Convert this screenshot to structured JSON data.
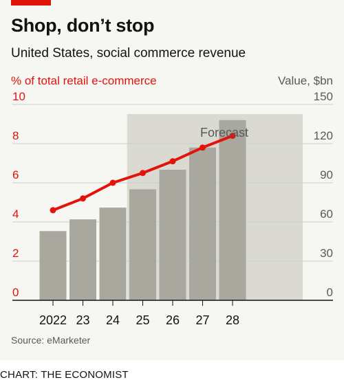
{
  "header": {
    "title": "Shop, don’t stop",
    "subtitle": "United States, social commerce revenue"
  },
  "footer": {
    "source": "Source: eMarketer",
    "credit": "CHART: THE ECONOMIST"
  },
  "colors": {
    "accent": "#e3120b",
    "bar": "#a8a89e",
    "forecast_band": "#dadad3",
    "background": "#f6f6f2"
  },
  "chart_data": {
    "type": "bar",
    "categories": [
      "2022",
      "23",
      "24",
      "25",
      "26",
      "27",
      "28"
    ],
    "forecast_label": "Forecast",
    "forecast_start": "25",
    "series": [
      {
        "type": "bar",
        "axis": "right",
        "values": [
          53,
          62,
          71,
          85,
          100,
          117,
          138
        ]
      },
      {
        "type": "line",
        "axis": "left",
        "values": [
          4.6,
          5.2,
          6.0,
          6.5,
          7.1,
          7.8,
          8.4
        ]
      }
    ],
    "left_axis": {
      "label": "% of total retail e-commerce",
      "ylim": [
        0,
        10
      ],
      "ticks": [
        "0",
        "2",
        "4",
        "6",
        "8",
        "10"
      ]
    },
    "right_axis": {
      "label": "Value, $bn",
      "ylim": [
        0,
        150
      ],
      "ticks": [
        "0",
        "30",
        "60",
        "90",
        "120",
        "150"
      ]
    },
    "grid": true
  }
}
